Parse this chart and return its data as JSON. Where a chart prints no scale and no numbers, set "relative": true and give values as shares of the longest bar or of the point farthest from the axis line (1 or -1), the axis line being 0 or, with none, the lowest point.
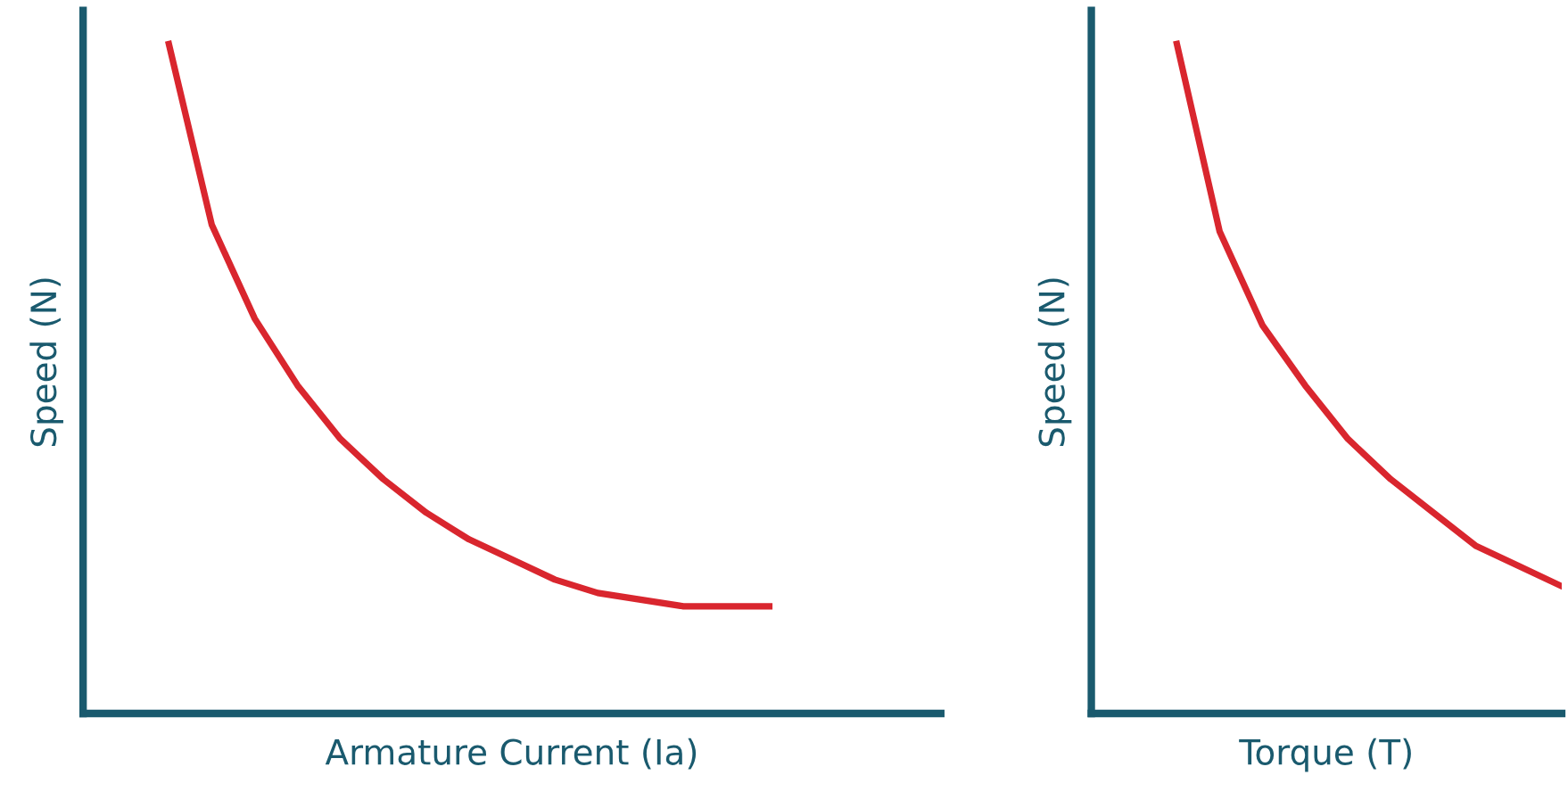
{
  "chart_data": [
    {
      "type": "line",
      "relative": true,
      "xlabel": "Armature Current (Ia)",
      "ylabel": "Speed (N)",
      "tick_labels": false,
      "grid": false,
      "legend": false,
      "marker": "none",
      "line_style": "solid",
      "categories": [
        null,
        null,
        null,
        null,
        null,
        null,
        null,
        null,
        null,
        null,
        null,
        null,
        null,
        null,
        null,
        null,
        null,
        null,
        null,
        null,
        null
      ],
      "series": [
        {
          "color": "#d9262e",
          "values": [
            null,
            null,
            1.0,
            0.73,
            0.59,
            0.49,
            0.41,
            0.35,
            0.3,
            0.26,
            0.23,
            0.2,
            0.18,
            0.17,
            0.16,
            0.16,
            0.16,
            null,
            null,
            null,
            null
          ]
        }
      ]
    },
    {
      "type": "line",
      "relative": true,
      "xlabel": "Torque (T)",
      "ylabel": "Speed (N)",
      "tick_labels": false,
      "grid": false,
      "legend": false,
      "marker": "none",
      "line_style": "solid",
      "categories": [
        null,
        null,
        null,
        null,
        null,
        null,
        null,
        null,
        null,
        null,
        null,
        null
      ],
      "series": [
        {
          "color": "#d9262e",
          "values": [
            null,
            null,
            1.0,
            0.72,
            0.58,
            0.49,
            0.41,
            0.35,
            0.3,
            0.25,
            0.22,
            0.19
          ]
        }
      ]
    }
  ]
}
